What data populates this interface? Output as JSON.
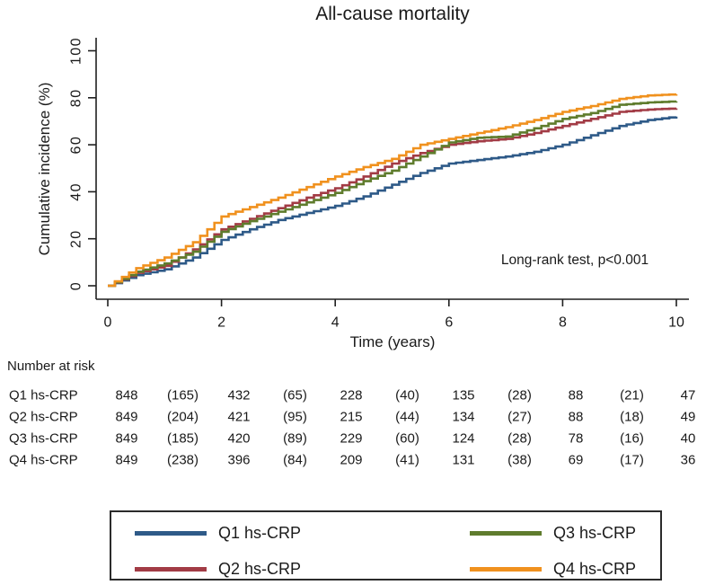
{
  "chart_data": {
    "type": "line",
    "subtype": "cumulative-incidence-step-curves",
    "title": "All-cause mortality",
    "xlabel": "Time (years)",
    "ylabel": "Cumulative incidence (%)",
    "annotation": "Long-rank test, p<0.001",
    "xlim": [
      0,
      10.2
    ],
    "ylim": [
      0,
      100
    ],
    "xticks": [
      0,
      2,
      4,
      6,
      8,
      10
    ],
    "yticks": [
      0,
      20,
      40,
      60,
      80,
      100
    ],
    "grid": false,
    "legend_position": "bottom-box-two-columns",
    "x": [
      0,
      0.5,
      1,
      1.5,
      2,
      2.5,
      3,
      3.5,
      4,
      4.5,
      5,
      5.5,
      6,
      6.5,
      7,
      7.5,
      8,
      8.5,
      9,
      9.5,
      10
    ],
    "series": [
      {
        "name": "Q1 hs-CRP",
        "color": "#2E5A88",
        "values": [
          0,
          4.5,
          7,
          12,
          19.5,
          24,
          28,
          31,
          34,
          38,
          43,
          48,
          52,
          53.5,
          55,
          57,
          60,
          64,
          68,
          70.5,
          72
        ]
      },
      {
        "name": "Q2 hs-CRP",
        "color": "#A23B45",
        "values": [
          0,
          5.5,
          8.5,
          15.5,
          24,
          28.5,
          33,
          37.5,
          41.5,
          46.5,
          52,
          56.5,
          60,
          61.5,
          62.5,
          65,
          68,
          71,
          74,
          75,
          75.5
        ]
      },
      {
        "name": "Q3 hs-CRP",
        "color": "#5F7C2D",
        "values": [
          0,
          6,
          9.5,
          14.5,
          23,
          27.5,
          31.5,
          35.5,
          39.5,
          44.5,
          49,
          55,
          61,
          63,
          63.5,
          67,
          71,
          73.5,
          77,
          78,
          78.5
        ]
      },
      {
        "name": "Q4 hs-CRP",
        "color": "#F0911E",
        "values": [
          0,
          7.5,
          12,
          18.5,
          29.5,
          33.5,
          37.5,
          42,
          46.5,
          50.5,
          54,
          60,
          62.5,
          65,
          67.5,
          70.5,
          74,
          76.5,
          79.5,
          81,
          81.5
        ]
      }
    ]
  },
  "risk_table": {
    "heading": "Number at risk",
    "rows": [
      {
        "label": "Q1 hs-CRP",
        "values": [
          "848",
          "(165)",
          "432",
          "(65)",
          "228",
          "(40)",
          "135",
          "(28)",
          "88",
          "(21)",
          "47"
        ]
      },
      {
        "label": "Q2 hs-CRP",
        "values": [
          "849",
          "(204)",
          "421",
          "(95)",
          "215",
          "(44)",
          "134",
          "(27)",
          "88",
          "(18)",
          "49"
        ]
      },
      {
        "label": "Q3 hs-CRP",
        "values": [
          "849",
          "(185)",
          "420",
          "(89)",
          "229",
          "(60)",
          "124",
          "(28)",
          "78",
          "(16)",
          "40"
        ]
      },
      {
        "label": "Q4 hs-CRP",
        "values": [
          "849",
          "(238)",
          "396",
          "(84)",
          "209",
          "(41)",
          "131",
          "(38)",
          "69",
          "(17)",
          "36"
        ]
      }
    ]
  },
  "legend": {
    "items": [
      {
        "label": "Q1 hs-CRP",
        "color": "#2E5A88"
      },
      {
        "label": "Q2 hs-CRP",
        "color": "#A23B45"
      },
      {
        "label": "Q3 hs-CRP",
        "color": "#5F7C2D"
      },
      {
        "label": "Q4 hs-CRP",
        "color": "#F0911E"
      }
    ],
    "columns": [
      [
        0,
        1
      ],
      [
        2,
        3
      ]
    ]
  },
  "colors": {
    "axis": "#1f1f1f",
    "text": "#1a1a1a",
    "legend_border": "#2b2b2b"
  }
}
